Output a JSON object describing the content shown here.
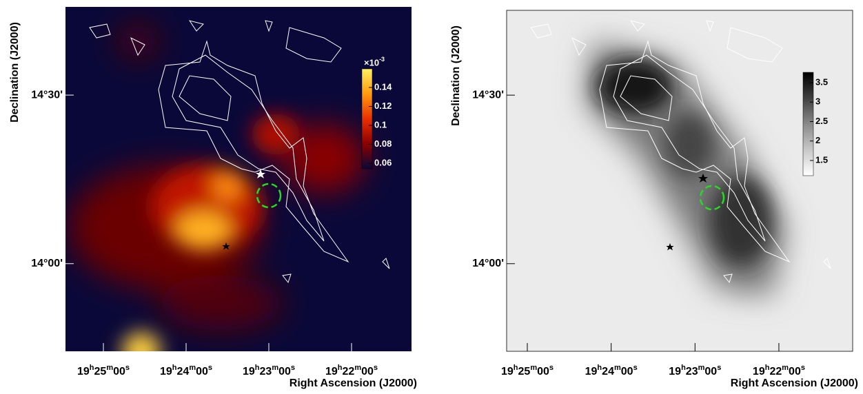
{
  "chart_data": [
    {
      "type": "heatmap",
      "xlabel": "Right Ascension (J2000)",
      "ylabel": "Declination (J2000)",
      "xlim": [
        1527.5,
        1276.5
      ],
      "xticks": [
        {
          "value": 1500,
          "label": "19h25m00s"
        },
        {
          "value": 1440,
          "label": "19h24m00s"
        },
        {
          "value": 1380,
          "label": "19h23m00s"
        },
        {
          "value": 1320,
          "label": "19h22m00s"
        }
      ],
      "ylim": [
        824.4,
        885.7
      ],
      "yticks": [
        {
          "value": 870,
          "label": "14°30'"
        },
        {
          "value": 840,
          "label": "14°00'"
        }
      ],
      "colorbar_multiplier": "×10",
      "colorbar_exponent": "-3",
      "clim": [
        0.0542,
        0.1596
      ],
      "cticks": [
        0.14,
        0.12,
        0.1,
        0.08,
        0.06
      ],
      "colormap": [
        "#0a0838",
        "#8a0000",
        "#e83000",
        "#ff9a10",
        "#fff060"
      ]
    },
    {
      "type": "heatmap",
      "xlabel": "Right Ascension (J2000)",
      "ylabel": "Declination (J2000)",
      "xlim": [
        1514.8,
        1267.2
      ],
      "xticks": [
        {
          "value": 1500,
          "label": "19h25m00s"
        },
        {
          "value": 1440,
          "label": "19h24m00s"
        },
        {
          "value": 1380,
          "label": "19h23m00s"
        },
        {
          "value": 1320,
          "label": "19h22m00s"
        }
      ],
      "ylim": [
        824.4,
        885.1
      ],
      "yticks": [
        {
          "value": 870,
          "label": "14°30'"
        },
        {
          "value": 840,
          "label": "14°00'"
        }
      ],
      "clim": [
        1.11,
        3.765
      ],
      "cticks": [
        3.5,
        3,
        2.5,
        2,
        1.5
      ],
      "colormap": [
        "#ffffff",
        "#c8c8c8",
        "#8a8a8a",
        "#404040",
        "#000000"
      ]
    }
  ]
}
